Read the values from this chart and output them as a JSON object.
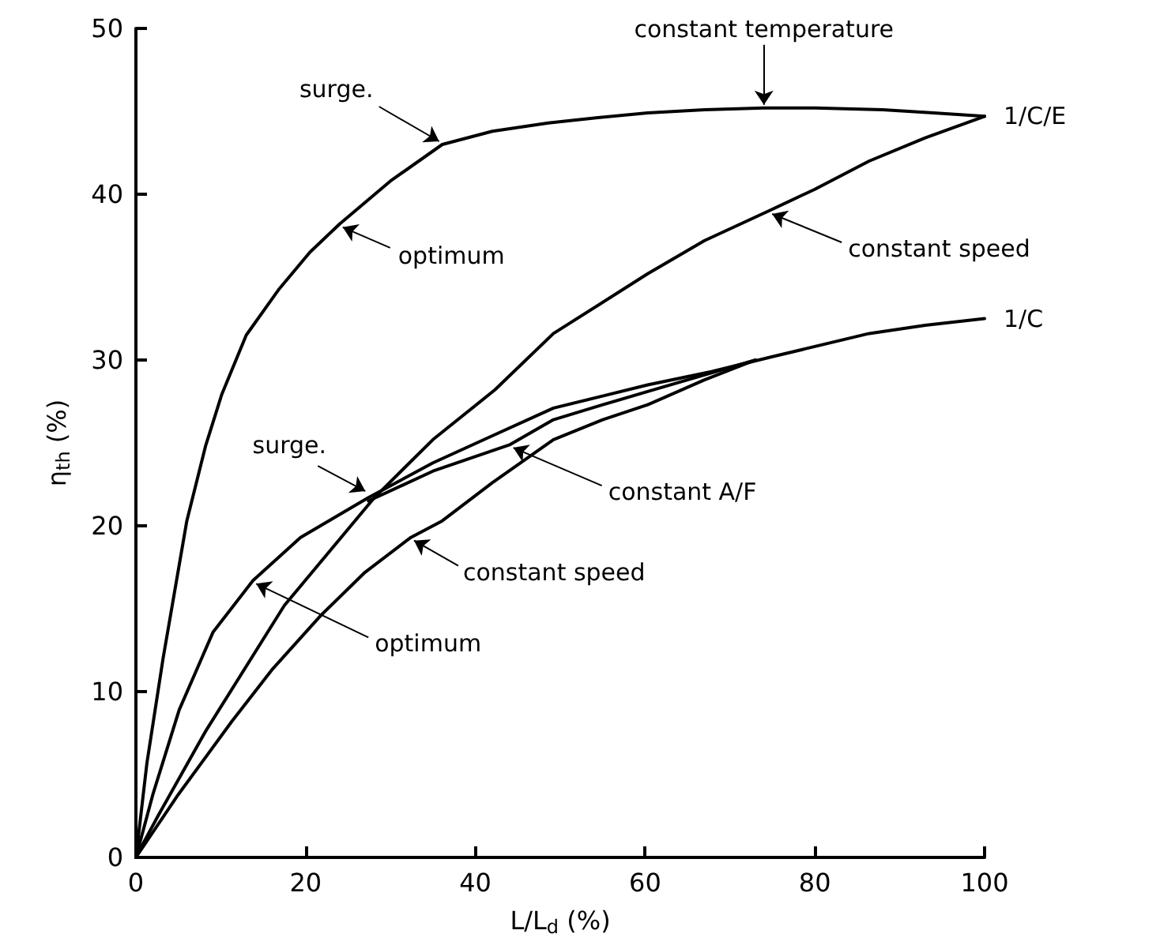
{
  "chart_data": {
    "type": "line",
    "xlabel": "L/L$_{d}$ (%)",
    "ylabel": "η$_{th}$ (%)",
    "xlim": [
      0,
      100
    ],
    "xticks": [
      0,
      20,
      40,
      60,
      80,
      100
    ],
    "ylim": [
      0,
      50
    ],
    "yticks": [
      0,
      10,
      20,
      30,
      40,
      50
    ],
    "grid": false,
    "marker": "none",
    "line_style": "solid",
    "series": [
      {
        "color": "#000000",
        "x": [
          0,
          1.3,
          3.2,
          6.0,
          8.2,
          10.1,
          13,
          16.9,
          20.5,
          24,
          30,
          36.1,
          42,
          48.6,
          54,
          60.3,
          67,
          74,
          80,
          88,
          94,
          100
        ],
        "values": [
          0,
          5.7,
          12,
          20.3,
          24.8,
          27.9,
          31.5,
          34.3,
          36.5,
          38.2,
          40.8,
          43.0,
          43.8,
          44.3,
          44.6,
          44.9,
          45.1,
          45.2,
          45.2,
          45.1,
          44.9,
          44.7
        ]
      },
      {
        "color": "#000000",
        "x": [
          0.5,
          2.6,
          8.2,
          17.5,
          28.1,
          35,
          42.3,
          49.2,
          60.3,
          67,
          74.6,
          80,
          86.4,
          93,
          100
        ],
        "values": [
          0.5,
          2.5,
          7.6,
          15.2,
          21.7,
          25.2,
          28.2,
          31.6,
          35.2,
          37.2,
          39.0,
          40.3,
          42.0,
          43.4,
          44.7
        ]
      },
      {
        "color": "#000000",
        "x": [
          0,
          2,
          5.1,
          9.1,
          13.8,
          19.4,
          27.4,
          35,
          42.3,
          49.2,
          60.3,
          67.8,
          75,
          86.4,
          93,
          100
        ],
        "values": [
          0,
          3.8,
          8.9,
          13.6,
          16.7,
          19.3,
          21.7,
          23.8,
          25.5,
          27.1,
          28.5,
          29.3,
          30.2,
          31.6,
          32.1,
          32.5
        ]
      },
      {
        "color": "#000000",
        "x": [
          27.4,
          35,
          44.1,
          49.2,
          55,
          60.3,
          67,
          73
        ],
        "values": [
          21.5,
          23.3,
          24.9,
          26.4,
          27.3,
          28.1,
          29.1,
          30.0
        ]
      },
      {
        "color": "#000000",
        "x": [
          0,
          5,
          11.3,
          16,
          21.8,
          27,
          32.4,
          36.1,
          42,
          49.2,
          55,
          60.3,
          67,
          73
        ],
        "values": [
          0,
          3.8,
          8.2,
          11.3,
          14.6,
          17.2,
          19.3,
          20.3,
          22.6,
          25.2,
          26.4,
          27.3,
          28.8,
          30.0
        ]
      }
    ],
    "annotations": [
      {
        "text": "constant temperature",
        "x": 74,
        "y": 45.2
      },
      {
        "text": "surge.",
        "x": 36.1,
        "y": 43.0
      },
      {
        "text": "optimum",
        "x": 24,
        "y": 38.2
      },
      {
        "text": "constant speed",
        "x": 74.6,
        "y": 39.0
      },
      {
        "text": "surge.",
        "x": 27.4,
        "y": 21.9
      },
      {
        "text": "constant A/F",
        "x": 44.1,
        "y": 24.9
      },
      {
        "text": "constant speed",
        "x": 32.4,
        "y": 19.3
      },
      {
        "text": "optimum",
        "x": 13.8,
        "y": 16.7
      },
      {
        "text": "1/C/E",
        "x": 100,
        "y": 44.7
      },
      {
        "text": "1/C",
        "x": 100,
        "y": 32.5
      }
    ]
  }
}
